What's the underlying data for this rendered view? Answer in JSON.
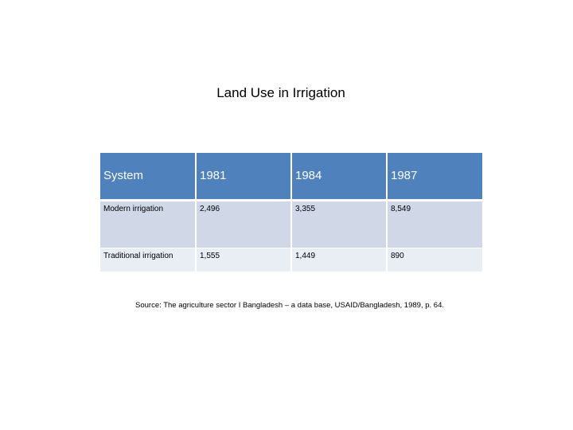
{
  "title": "Land Use in Irrigation",
  "table": {
    "headers": [
      "System",
      "1981",
      "1984",
      "1987"
    ],
    "rows": [
      [
        "Modern irrigation",
        "2,496",
        "3,355",
        "8,549"
      ],
      [
        "Traditional irrigation",
        "1,555",
        "1,449",
        "890"
      ]
    ]
  },
  "source": "Source: The agriculture sector I Bangladesh – a data base, USAID/Bangladesh, 1989, p. 64.",
  "colors": {
    "header_bg": "#4f81bd",
    "row_odd_bg": "#d0d8e8",
    "row_even_bg": "#e9edf4"
  }
}
